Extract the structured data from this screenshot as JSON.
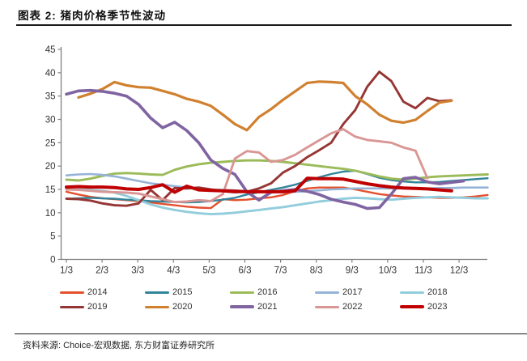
{
  "figure": {
    "title": "图表 2: 猪肉价格季节性波动",
    "source": "资料来源: Choice-宏观数据, 东方财富证券研究所"
  },
  "chart_data": {
    "type": "line",
    "title": "猪肉价格季节性波动",
    "xlabel": "",
    "ylabel": "",
    "x_labels": [
      "1/3",
      "2/3",
      "3/3",
      "4/3",
      "5/3",
      "6/3",
      "7/3",
      "8/3",
      "9/3",
      "10/3",
      "11/3",
      "12/3"
    ],
    "y_ticks": [
      0,
      5,
      10,
      15,
      20,
      25,
      30,
      35,
      40,
      45
    ],
    "ylim": [
      0,
      45
    ],
    "grid": false,
    "legend_position": "bottom",
    "points_per_month": 3,
    "axis_color": "#808080",
    "tick_text_color": "#333333",
    "series": [
      {
        "name": "2014",
        "color": "#E4502E",
        "width": 2.4,
        "values": [
          14.5,
          13.9,
          13.4,
          13.1,
          12.9,
          12.7,
          12.5,
          12.2,
          11.9,
          11.6,
          11.3,
          11.1,
          11.0,
          12.9,
          12.7,
          12.8,
          13.1,
          13.3,
          13.8,
          14.6,
          15.2,
          15.4,
          15.4,
          15.4,
          15.0,
          14.5,
          14.0,
          13.7,
          13.5,
          13.4,
          13.3,
          13.2,
          13.2,
          13.3,
          13.5,
          13.8
        ]
      },
      {
        "name": "2015",
        "color": "#31849B",
        "width": 2.4,
        "values": [
          13.0,
          13.1,
          13.2,
          13.1,
          13.0,
          12.8,
          12.7,
          12.5,
          12.4,
          12.3,
          12.2,
          12.3,
          12.5,
          12.8,
          13.2,
          13.9,
          14.4,
          14.9,
          15.4,
          16.0,
          16.8,
          17.6,
          18.3,
          18.8,
          19.0,
          18.3,
          17.5,
          17.0,
          16.7,
          16.5,
          16.5,
          16.6,
          16.8,
          17.0,
          17.2,
          17.4
        ]
      },
      {
        "name": "2016",
        "color": "#9BBB59",
        "width": 2.9,
        "values": [
          17.1,
          16.9,
          17.3,
          17.9,
          18.4,
          18.5,
          18.4,
          18.2,
          18.1,
          19.2,
          19.9,
          20.4,
          20.7,
          20.9,
          21.1,
          21.2,
          21.2,
          21.1,
          20.9,
          20.6,
          20.3,
          20.0,
          19.7,
          19.4,
          19.0,
          18.4,
          17.8,
          17.3,
          17.1,
          17.3,
          17.6,
          17.8,
          17.9,
          18.0,
          18.1,
          18.2
        ]
      },
      {
        "name": "2017",
        "color": "#95B3D7",
        "width": 2.6,
        "values": [
          18.0,
          18.2,
          18.3,
          18.1,
          17.8,
          17.3,
          16.8,
          16.3,
          16.0,
          15.7,
          15.4,
          15.2,
          15.0,
          14.9,
          14.8,
          14.6,
          14.5,
          14.4,
          14.4,
          14.5,
          14.6,
          14.8,
          15.0,
          15.1,
          15.2,
          15.2,
          15.2,
          15.2,
          15.2,
          15.2,
          15.2,
          15.3,
          15.3,
          15.4,
          15.4,
          15.4
        ]
      },
      {
        "name": "2018",
        "color": "#92CDDC",
        "width": 2.9,
        "values": [
          15.1,
          15.0,
          14.9,
          14.7,
          14.3,
          13.6,
          12.7,
          11.8,
          11.1,
          10.6,
          10.2,
          9.9,
          9.7,
          9.8,
          10.0,
          10.3,
          10.6,
          10.9,
          11.2,
          11.6,
          12.0,
          12.4,
          12.7,
          13.0,
          13.2,
          13.1,
          12.9,
          12.8,
          13.0,
          13.2,
          13.3,
          13.4,
          13.3,
          13.2,
          13.1,
          13.1
        ]
      },
      {
        "name": "2019",
        "color": "#963634",
        "width": 2.9,
        "values": [
          13.0,
          12.9,
          12.6,
          12.0,
          11.6,
          11.5,
          12.0,
          14.9,
          12.7,
          15.3,
          15.2,
          15.4,
          15.0,
          14.6,
          14.4,
          14.5,
          15.2,
          16.3,
          18.6,
          20.0,
          21.9,
          23.4,
          25.0,
          29.0,
          32.0,
          37.0,
          40.2,
          38.2,
          33.8,
          32.4,
          34.6,
          33.9,
          34.1,
          null,
          null,
          null
        ]
      },
      {
        "name": "2020",
        "color": "#D0802F",
        "width": 3.2,
        "values": [
          null,
          34.7,
          35.5,
          36.5,
          38.0,
          37.3,
          36.9,
          36.8,
          36.1,
          35.4,
          34.4,
          33.8,
          32.9,
          31.0,
          29.0,
          27.7,
          30.5,
          32.2,
          34.2,
          36.0,
          37.8,
          38.1,
          38.0,
          37.8,
          35.0,
          33.2,
          31.0,
          29.7,
          29.3,
          29.9,
          31.8,
          33.6,
          34.0,
          null,
          null,
          null
        ]
      },
      {
        "name": "2021",
        "color": "#8064A2",
        "width": 3.6,
        "values": [
          35.4,
          36.1,
          36.2,
          36.0,
          35.6,
          35.0,
          33.2,
          30.3,
          28.2,
          29.4,
          27.6,
          25.0,
          21.3,
          19.5,
          18.2,
          14.5,
          12.7,
          14.4,
          14.7,
          15.0,
          14.6,
          13.9,
          12.9,
          12.3,
          11.8,
          10.9,
          11.1,
          14.0,
          17.3,
          17.6,
          16.6,
          16.2,
          16.5,
          16.8,
          null,
          null
        ]
      },
      {
        "name": "2022",
        "color": "#D99694",
        "width": 2.9,
        "values": [
          15.0,
          14.9,
          14.7,
          14.5,
          14.4,
          14.3,
          14.1,
          13.5,
          12.9,
          12.3,
          12.4,
          12.7,
          12.5,
          14.0,
          21.6,
          23.2,
          22.9,
          20.9,
          21.3,
          22.4,
          24.0,
          25.5,
          27.0,
          27.9,
          26.3,
          25.6,
          25.3,
          25.0,
          24.0,
          23.3,
          17.4,
          null,
          null,
          null,
          null,
          null
        ]
      },
      {
        "name": "2023",
        "color": "#C00000",
        "width": 4.0,
        "values": [
          15.5,
          15.6,
          15.5,
          15.5,
          15.4,
          15.1,
          15.0,
          15.4,
          16.0,
          14.4,
          15.7,
          14.9,
          14.8,
          14.7,
          14.6,
          14.5,
          14.5,
          14.5,
          14.5,
          14.7,
          17.4,
          17.3,
          17.3,
          17.2,
          16.7,
          16.2,
          15.8,
          15.5,
          15.3,
          15.2,
          15.1,
          14.9,
          14.7,
          null,
          null,
          null
        ]
      }
    ]
  }
}
